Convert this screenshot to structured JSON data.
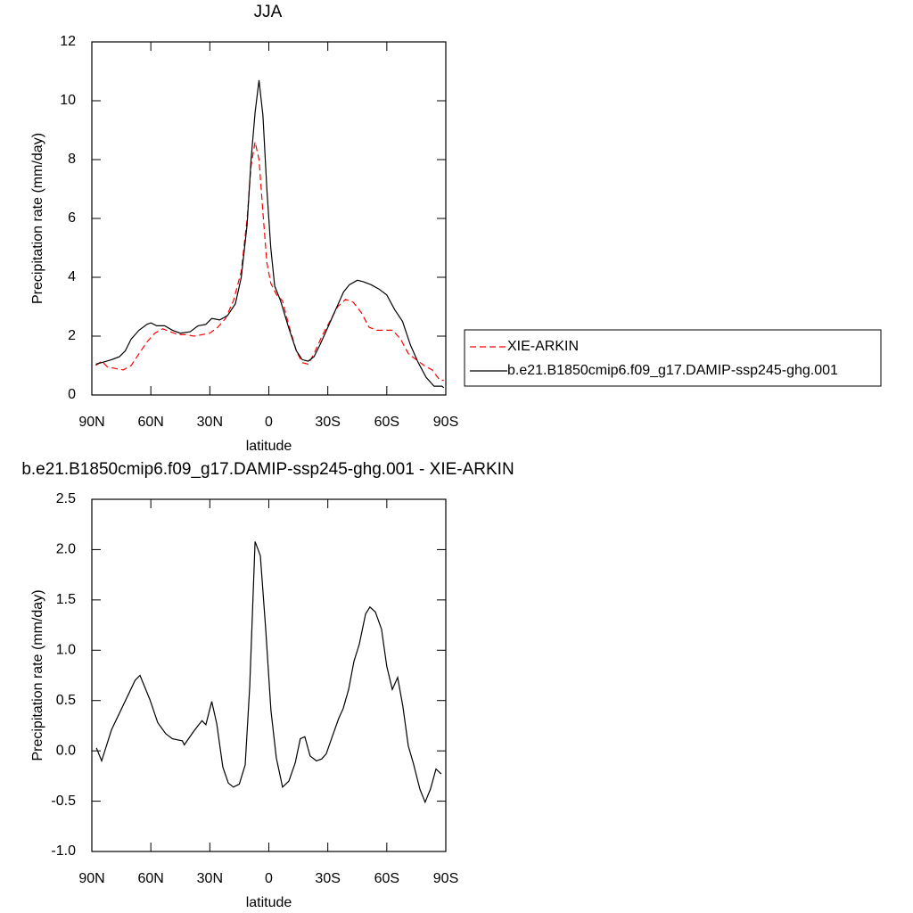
{
  "chart_data": [
    {
      "type": "line",
      "title": "JJA",
      "x_label": "latitude",
      "y_label": "Precipitation rate (mm/day)",
      "xlim": [
        90,
        -90
      ],
      "xticks": [
        {
          "value": 90,
          "label": "90N"
        },
        {
          "value": 60,
          "label": "60N"
        },
        {
          "value": 30,
          "label": "30N"
        },
        0,
        {
          "value": -30,
          "label": "30S"
        },
        {
          "value": -60,
          "label": "60S"
        },
        {
          "value": -90,
          "label": "90S"
        }
      ],
      "ylim": [
        0,
        12
      ],
      "yticks": [
        0,
        2,
        4,
        6,
        8,
        10,
        12
      ],
      "legend": "right",
      "series": [
        {
          "name": "XIE-ARKIN",
          "color": "#ff0000",
          "line_style": "dashed",
          "x": [
            88,
            85,
            82,
            78,
            74,
            70,
            66,
            62,
            58,
            54,
            50,
            46,
            42,
            38,
            34,
            30,
            26,
            22,
            18,
            14,
            11,
            9,
            7,
            5,
            3,
            1,
            -1,
            -4,
            -7,
            -10,
            -14,
            -17,
            -20,
            -23,
            -27,
            -31,
            -35,
            -39,
            -43,
            -47,
            -51,
            -55,
            -59,
            -63,
            -67,
            -71,
            -75,
            -79,
            -83,
            -87,
            -89
          ],
          "values": [
            1.0,
            1.15,
            0.95,
            0.9,
            0.85,
            1.0,
            1.4,
            1.8,
            2.1,
            2.25,
            2.15,
            2.05,
            2.05,
            2.0,
            2.05,
            2.1,
            2.3,
            2.6,
            3.2,
            4.2,
            6.0,
            7.8,
            8.6,
            8.0,
            6.2,
            4.5,
            3.8,
            3.4,
            3.2,
            2.4,
            1.5,
            1.1,
            1.05,
            1.4,
            2.0,
            2.5,
            3.0,
            3.25,
            3.15,
            2.8,
            2.3,
            2.2,
            2.2,
            2.2,
            1.9,
            1.4,
            1.2,
            1.0,
            0.85,
            0.5,
            0.5
          ]
        },
        {
          "name": "b.e21.B1850cmip6.f09_g17.DAMIP-ssp245-ghg.001",
          "color": "#000000",
          "line_style": "solid",
          "x": [
            88,
            85,
            80,
            76,
            73,
            70,
            66,
            62,
            60,
            57,
            53,
            49,
            45,
            40,
            36,
            32,
            29,
            25,
            21,
            17,
            14,
            11,
            9,
            7,
            5,
            3,
            1,
            -1,
            -3,
            -6,
            -10,
            -14,
            -17,
            -20,
            -23,
            -26,
            -30,
            -34,
            -38,
            -41,
            -45,
            -48,
            -52,
            -56,
            -60,
            -64,
            -68,
            -72,
            -76,
            -80,
            -84,
            -88,
            -89
          ],
          "values": [
            1.05,
            1.1,
            1.2,
            1.3,
            1.5,
            1.9,
            2.2,
            2.4,
            2.45,
            2.35,
            2.35,
            2.2,
            2.1,
            2.15,
            2.35,
            2.4,
            2.6,
            2.55,
            2.7,
            3.1,
            4.0,
            5.8,
            8.0,
            9.6,
            10.7,
            9.5,
            7.0,
            5.0,
            3.7,
            3.2,
            2.3,
            1.5,
            1.2,
            1.15,
            1.3,
            1.7,
            2.3,
            2.9,
            3.5,
            3.75,
            3.9,
            3.85,
            3.75,
            3.6,
            3.4,
            2.9,
            2.5,
            1.7,
            1.1,
            0.6,
            0.3,
            0.3,
            0.25
          ]
        }
      ]
    },
    {
      "type": "line",
      "title": "b.e21.B1850cmip6.f09_g17.DAMIP-ssp245-ghg.001 - XIE-ARKIN",
      "x_label": "latitude",
      "y_label": "Precipitation rate (mm/day)",
      "xlim": [
        90,
        -90
      ],
      "xticks": [
        {
          "value": 90,
          "label": "90N"
        },
        {
          "value": 60,
          "label": "60N"
        },
        {
          "value": 30,
          "label": "30N"
        },
        0,
        {
          "value": -30,
          "label": "30S"
        },
        {
          "value": -60,
          "label": "60S"
        },
        {
          "value": -90,
          "label": "90S"
        }
      ],
      "ylim": [
        -1,
        2.5
      ],
      "yticks": [
        {
          "value": -1,
          "label": "-1.0"
        },
        -0.5,
        {
          "value": 0,
          "label": "0.0"
        },
        0.5,
        {
          "value": 1,
          "label": "1.0"
        },
        1.5,
        {
          "value": 2,
          "label": "2.0"
        },
        2.5
      ],
      "series": [
        {
          "color": "#000000",
          "line_style": "solid",
          "x": [
            87.7,
            85,
            80,
            68,
            65.5,
            60.5,
            56.5,
            52.4,
            49,
            44,
            43,
            38,
            34,
            32,
            29,
            26.5,
            23.4,
            20.6,
            18,
            15,
            12,
            9.7,
            7,
            4.3,
            1.6,
            -1.1,
            -3.8,
            -7,
            -10.2,
            -13.4,
            -16,
            -18.3,
            -21,
            -24.2,
            -26.9,
            -29.2,
            -32.4,
            -35.5,
            -37.8,
            -40.6,
            -43.3,
            -46,
            -49.2,
            -51.4,
            -54.2,
            -57.3,
            -60,
            -62.8,
            -65.5,
            -68.2,
            -70.9,
            -73.6,
            -76.8,
            -79.5,
            -82.2,
            -85,
            -87.7
          ],
          "values": [
            0.03,
            -0.1,
            0.21,
            0.7,
            0.75,
            0.51,
            0.28,
            0.17,
            0.12,
            0.1,
            0.06,
            0.2,
            0.3,
            0.26,
            0.49,
            0.27,
            -0.16,
            -0.32,
            -0.36,
            -0.33,
            -0.14,
            0.64,
            2.08,
            1.94,
            1.21,
            0.4,
            -0.07,
            -0.36,
            -0.3,
            -0.12,
            0.12,
            0.14,
            -0.05,
            -0.1,
            -0.08,
            -0.03,
            0.15,
            0.32,
            0.42,
            0.61,
            0.89,
            1.06,
            1.36,
            1.43,
            1.38,
            1.21,
            0.84,
            0.61,
            0.73,
            0.44,
            0.05,
            -0.13,
            -0.38,
            -0.51,
            -0.38,
            -0.18,
            -0.23
          ]
        }
      ]
    }
  ]
}
